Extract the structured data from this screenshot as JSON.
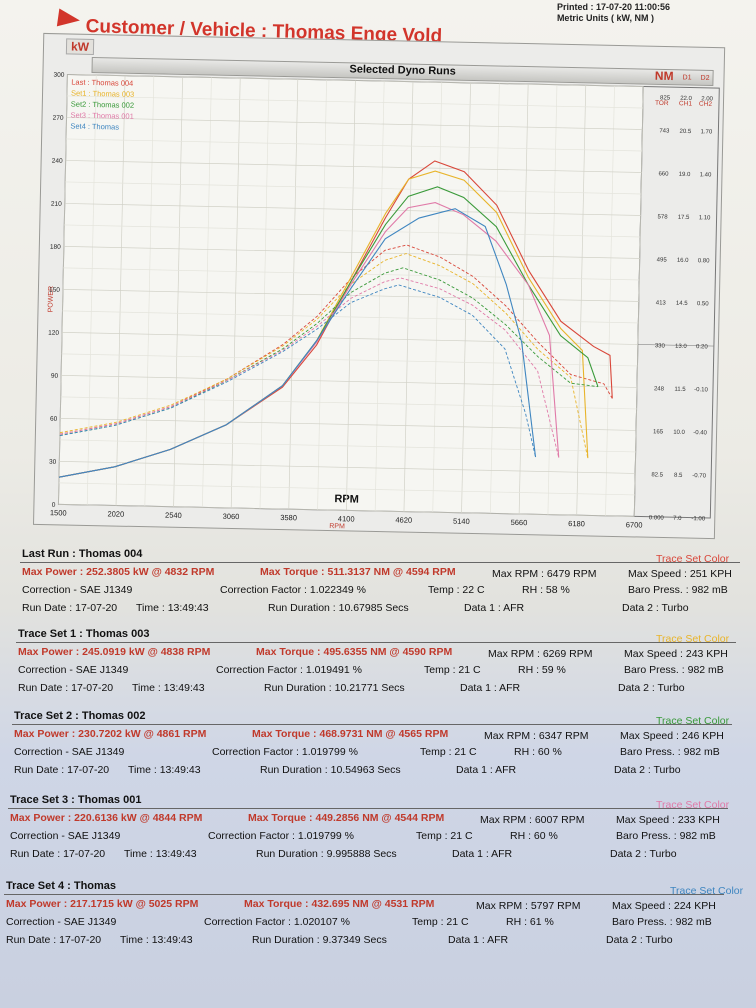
{
  "header": {
    "printed": "Printed : 17-07-20 11:00:56",
    "units": "Metric Units ( kW, NM )",
    "title": "Customer / Vehicle : Thomas Enge Vold"
  },
  "chart_labels": {
    "left_tab": "kW",
    "bar_title": "Selected Dyno Runs",
    "right_tab": "NM",
    "d1": "D1",
    "d2": "D2",
    "rpm_title": "RPM",
    "rpm_small": "RPM",
    "power_label": "POWER",
    "right_head_tor": "TOR",
    "right_head_ch1": "CH1",
    "right_head_ch2": "CH2"
  },
  "chart_data": {
    "type": "line",
    "x_label": "RPM",
    "y_label": "POWER",
    "xlim": [
      1500,
      6700
    ],
    "ylim": [
      0,
      300
    ],
    "x_ticks": [
      "1500",
      "2020",
      "2540",
      "3060",
      "3580",
      "4100",
      "4620",
      "5140",
      "5660",
      "6180",
      "6700"
    ],
    "y_ticks": [
      "0",
      "30",
      "60",
      "90",
      "120",
      "150",
      "180",
      "210",
      "240",
      "270",
      "300"
    ],
    "right_axis": {
      "tor": [
        "0.000",
        "82.5",
        "165",
        "248",
        "330",
        "413",
        "495",
        "578",
        "660",
        "743",
        "825"
      ],
      "ch1": [
        "7.0",
        "8.5",
        "10.0",
        "11.5",
        "13.0",
        "14.5",
        "16.0",
        "17.5",
        "19.0",
        "20.5",
        "22.0"
      ],
      "ch2": [
        "-1.00",
        "-0.70",
        "-0.40",
        "-0.10",
        "0.20",
        "0.50",
        "0.80",
        "1.10",
        "1.40",
        "1.70",
        "2.00"
      ]
    },
    "legend": [
      {
        "label": "Last : Thomas 004",
        "color": "#d9473a"
      },
      {
        "label": "Set1 : Thomas 003",
        "color": "#e8b42a"
      },
      {
        "label": "Set2 : Thomas 002",
        "color": "#3a9a3a"
      },
      {
        "label": "Set3 : Thomas 001",
        "color": "#e07aa8"
      },
      {
        "label": "Set4 : Thomas",
        "color": "#3f86c0"
      }
    ],
    "series": [
      {
        "name": "Last : Thomas 004",
        "color": "#d9473a",
        "power": [
          [
            1500,
            19
          ],
          [
            2000,
            27
          ],
          [
            2500,
            40
          ],
          [
            3000,
            58
          ],
          [
            3500,
            85
          ],
          [
            3800,
            115
          ],
          [
            4100,
            160
          ],
          [
            4400,
            205
          ],
          [
            4600,
            232
          ],
          [
            4832,
            245
          ],
          [
            5100,
            238
          ],
          [
            5400,
            215
          ],
          [
            5700,
            170
          ],
          [
            6000,
            135
          ],
          [
            6300,
            118
          ],
          [
            6450,
            112
          ],
          [
            6479,
            82
          ]
        ],
        "torque": [
          [
            1500,
            49
          ],
          [
            2000,
            57
          ],
          [
            2500,
            70
          ],
          [
            3000,
            90
          ],
          [
            3500,
            115
          ],
          [
            3800,
            135
          ],
          [
            4100,
            162
          ],
          [
            4400,
            182
          ],
          [
            4594,
            186
          ],
          [
            4900,
            178
          ],
          [
            5200,
            165
          ],
          [
            5500,
            145
          ],
          [
            5800,
            120
          ],
          [
            6100,
            98
          ],
          [
            6400,
            92
          ],
          [
            6479,
            82
          ]
        ]
      },
      {
        "name": "Set1 : Thomas 003",
        "color": "#e8b42a",
        "power": [
          [
            1500,
            19
          ],
          [
            2000,
            27
          ],
          [
            2500,
            40
          ],
          [
            3000,
            58
          ],
          [
            3500,
            86
          ],
          [
            3800,
            118
          ],
          [
            4100,
            163
          ],
          [
            4400,
            208
          ],
          [
            4600,
            232
          ],
          [
            4838,
            238
          ],
          [
            5100,
            232
          ],
          [
            5400,
            210
          ],
          [
            5700,
            165
          ],
          [
            6000,
            130
          ],
          [
            6200,
            115
          ],
          [
            6269,
            40
          ]
        ],
        "torque": [
          [
            1500,
            50
          ],
          [
            2000,
            58
          ],
          [
            2500,
            71
          ],
          [
            3000,
            90
          ],
          [
            3500,
            114
          ],
          [
            3800,
            133
          ],
          [
            4100,
            158
          ],
          [
            4400,
            175
          ],
          [
            4590,
            180
          ],
          [
            4900,
            172
          ],
          [
            5200,
            160
          ],
          [
            5500,
            140
          ],
          [
            5800,
            115
          ],
          [
            6100,
            96
          ],
          [
            6269,
            40
          ]
        ]
      },
      {
        "name": "Set2 : Thomas 002",
        "color": "#3a9a3a",
        "power": [
          [
            1500,
            19
          ],
          [
            2000,
            27
          ],
          [
            2500,
            40
          ],
          [
            3000,
            58
          ],
          [
            3500,
            86
          ],
          [
            3800,
            118
          ],
          [
            4100,
            160
          ],
          [
            4400,
            200
          ],
          [
            4600,
            220
          ],
          [
            4861,
            227
          ],
          [
            5100,
            220
          ],
          [
            5400,
            200
          ],
          [
            5700,
            160
          ],
          [
            6000,
            125
          ],
          [
            6250,
            110
          ],
          [
            6347,
            90
          ]
        ],
        "torque": [
          [
            1500,
            48
          ],
          [
            2000,
            56
          ],
          [
            2500,
            69
          ],
          [
            3000,
            89
          ],
          [
            3500,
            112
          ],
          [
            3800,
            130
          ],
          [
            4100,
            152
          ],
          [
            4400,
            166
          ],
          [
            4565,
            170
          ],
          [
            4900,
            162
          ],
          [
            5200,
            150
          ],
          [
            5500,
            132
          ],
          [
            5800,
            110
          ],
          [
            6100,
            92
          ],
          [
            6347,
            90
          ]
        ]
      },
      {
        "name": "Set3 : Thomas 001",
        "color": "#e07aa8",
        "power": [
          [
            1500,
            19
          ],
          [
            2000,
            27
          ],
          [
            2500,
            40
          ],
          [
            3000,
            58
          ],
          [
            3500,
            86
          ],
          [
            3800,
            117
          ],
          [
            4100,
            158
          ],
          [
            4400,
            195
          ],
          [
            4600,
            212
          ],
          [
            4844,
            216
          ],
          [
            5100,
            208
          ],
          [
            5400,
            190
          ],
          [
            5700,
            160
          ],
          [
            5900,
            125
          ],
          [
            6007,
            40
          ]
        ],
        "torque": [
          [
            1500,
            49
          ],
          [
            2000,
            57
          ],
          [
            2500,
            70
          ],
          [
            3000,
            89
          ],
          [
            3500,
            111
          ],
          [
            3800,
            128
          ],
          [
            4100,
            148
          ],
          [
            4400,
            160
          ],
          [
            4544,
            163
          ],
          [
            4900,
            156
          ],
          [
            5200,
            145
          ],
          [
            5500,
            128
          ],
          [
            5800,
            100
          ],
          [
            6007,
            40
          ]
        ]
      },
      {
        "name": "Set4 : Thomas",
        "color": "#3f86c0",
        "power": [
          [
            1500,
            19
          ],
          [
            2000,
            27
          ],
          [
            2500,
            40
          ],
          [
            3000,
            58
          ],
          [
            3500,
            86
          ],
          [
            3800,
            118
          ],
          [
            4100,
            155
          ],
          [
            4400,
            190
          ],
          [
            4700,
            205
          ],
          [
            5025,
            212
          ],
          [
            5300,
            200
          ],
          [
            5500,
            160
          ],
          [
            5650,
            120
          ],
          [
            5797,
            40
          ]
        ],
        "torque": [
          [
            1500,
            48
          ],
          [
            2000,
            56
          ],
          [
            2500,
            69
          ],
          [
            3000,
            88
          ],
          [
            3500,
            110
          ],
          [
            3800,
            126
          ],
          [
            4100,
            145
          ],
          [
            4400,
            155
          ],
          [
            4531,
            158
          ],
          [
            4900,
            150
          ],
          [
            5200,
            138
          ],
          [
            5500,
            115
          ],
          [
            5700,
            70
          ],
          [
            5797,
            40
          ]
        ]
      }
    ]
  },
  "trace_color_label": "Trace Set Color",
  "runs": [
    {
      "title": "Last Run : Thomas 004",
      "color": "#d9473a",
      "max_power": "Max Power : 252.3805 kW @ 4832 RPM",
      "max_torque": "Max Torque : 511.3137 NM @ 4594 RPM",
      "max_rpm": "Max RPM : 6479 RPM",
      "max_speed": "Max Speed : 251 KPH",
      "correction": "Correction - SAE J1349",
      "factor": "Correction Factor : 1.022349 %",
      "temp": "Temp : 22 C",
      "rh": "RH : 58 %",
      "baro": "Baro Press. : 982 mB",
      "run_date": "Run Date : 17-07-20",
      "time": "Time : 13:49:43",
      "duration": "Run Duration : 10.67985 Secs",
      "data1": "Data 1 : AFR",
      "data2": "Data 2 : Turbo"
    },
    {
      "title": "Trace Set 1 : Thomas 003",
      "color": "#e8b42a",
      "max_power": "Max Power : 245.0919 kW @ 4838 RPM",
      "max_torque": "Max Torque : 495.6355 NM @ 4590 RPM",
      "max_rpm": "Max RPM : 6269 RPM",
      "max_speed": "Max Speed : 243 KPH",
      "correction": "Correction - SAE J1349",
      "factor": "Correction Factor : 1.019491 %",
      "temp": "Temp : 21 C",
      "rh": "RH : 59 %",
      "baro": "Baro Press. : 982 mB",
      "run_date": "Run Date : 17-07-20",
      "time": "Time : 13:49:43",
      "duration": "Run Duration : 10.21771 Secs",
      "data1": "Data 1 : AFR",
      "data2": "Data 2 : Turbo"
    },
    {
      "title": "Trace Set 2 : Thomas 002",
      "color": "#3a9a3a",
      "max_power": "Max Power : 230.7202 kW @ 4861 RPM",
      "max_torque": "Max Torque : 468.9731 NM @ 4565 RPM",
      "max_rpm": "Max RPM : 6347 RPM",
      "max_speed": "Max Speed : 246 KPH",
      "correction": "Correction - SAE J1349",
      "factor": "Correction Factor : 1.019799 %",
      "temp": "Temp : 21 C",
      "rh": "RH : 60 %",
      "baro": "Baro Press. : 982 mB",
      "run_date": "Run Date : 17-07-20",
      "time": "Time : 13:49:43",
      "duration": "Run Duration : 10.54963 Secs",
      "data1": "Data 1 : AFR",
      "data2": "Data 2 : Turbo"
    },
    {
      "title": "Trace Set 3 : Thomas 001",
      "color": "#e07aa8",
      "max_power": "Max Power : 220.6136 kW @ 4844 RPM",
      "max_torque": "Max Torque : 449.2856 NM @ 4544 RPM",
      "max_rpm": "Max RPM : 6007 RPM",
      "max_speed": "Max Speed : 233 KPH",
      "correction": "Correction - SAE J1349",
      "factor": "Correction Factor : 1.019799 %",
      "temp": "Temp : 21 C",
      "rh": "RH : 60 %",
      "baro": "Baro Press. : 982 mB",
      "run_date": "Run Date : 17-07-20",
      "time": "Time : 13:49:43",
      "duration": "Run Duration : 9.995888 Secs",
      "data1": "Data 1 : AFR",
      "data2": "Data 2 : Turbo"
    },
    {
      "title": "Trace Set 4 : Thomas",
      "color": "#3f86c0",
      "max_power": "Max Power : 217.1715 kW @ 5025 RPM",
      "max_torque": "Max Torque : 432.695 NM @ 4531 RPM",
      "max_rpm": "Max RPM : 5797 RPM",
      "max_speed": "Max Speed : 224 KPH",
      "correction": "Correction - SAE J1349",
      "factor": "Correction Factor : 1.020107 %",
      "temp": "Temp : 21 C",
      "rh": "RH : 61 %",
      "baro": "Baro Press. : 982 mB",
      "run_date": "Run Date : 17-07-20",
      "time": "Time : 13:49:43",
      "duration": "Run Duration : 9.37349 Secs",
      "data1": "Data 1 : AFR",
      "data2": "Data 2 : Turbo"
    }
  ]
}
